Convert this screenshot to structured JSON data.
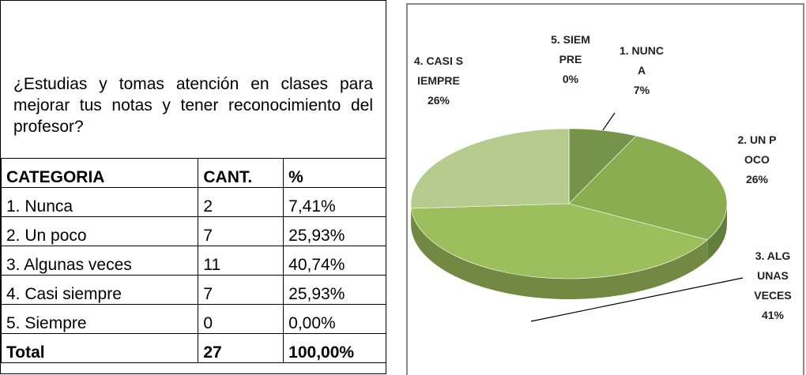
{
  "question": "¿Estudias y tomas atención en clases para mejorar tus notas y tener reconocimiento del profesor?",
  "table": {
    "header": [
      "CATEGORIA",
      "CANT.",
      "%"
    ],
    "rows": [
      [
        "1. Nunca",
        "2",
        "7,41%"
      ],
      [
        "2. Un poco",
        "7",
        "25,93%"
      ],
      [
        "3. Algunas veces",
        "11",
        "40,74%"
      ],
      [
        "4. Casi siempre",
        "7",
        "25,93%"
      ],
      [
        "5. Siempre",
        "0",
        "0,00%"
      ]
    ],
    "total": [
      "Total",
      "27",
      "100,00%"
    ]
  },
  "chart_data": {
    "type": "pie",
    "categories": [
      "1. NUNCA",
      "2. UN POCO",
      "3. ALGUNAS VECES",
      "4. CASI SIEMPRE",
      "5. SIEMPRE"
    ],
    "values": [
      7,
      26,
      41,
      26,
      0
    ],
    "value_labels": [
      "7%",
      "26%",
      "41%",
      "26%",
      "0%"
    ],
    "colors": [
      "#77934a",
      "#8aad52",
      "#9dbe5c",
      "#b5cc8e",
      "#c5d7a5"
    ]
  }
}
